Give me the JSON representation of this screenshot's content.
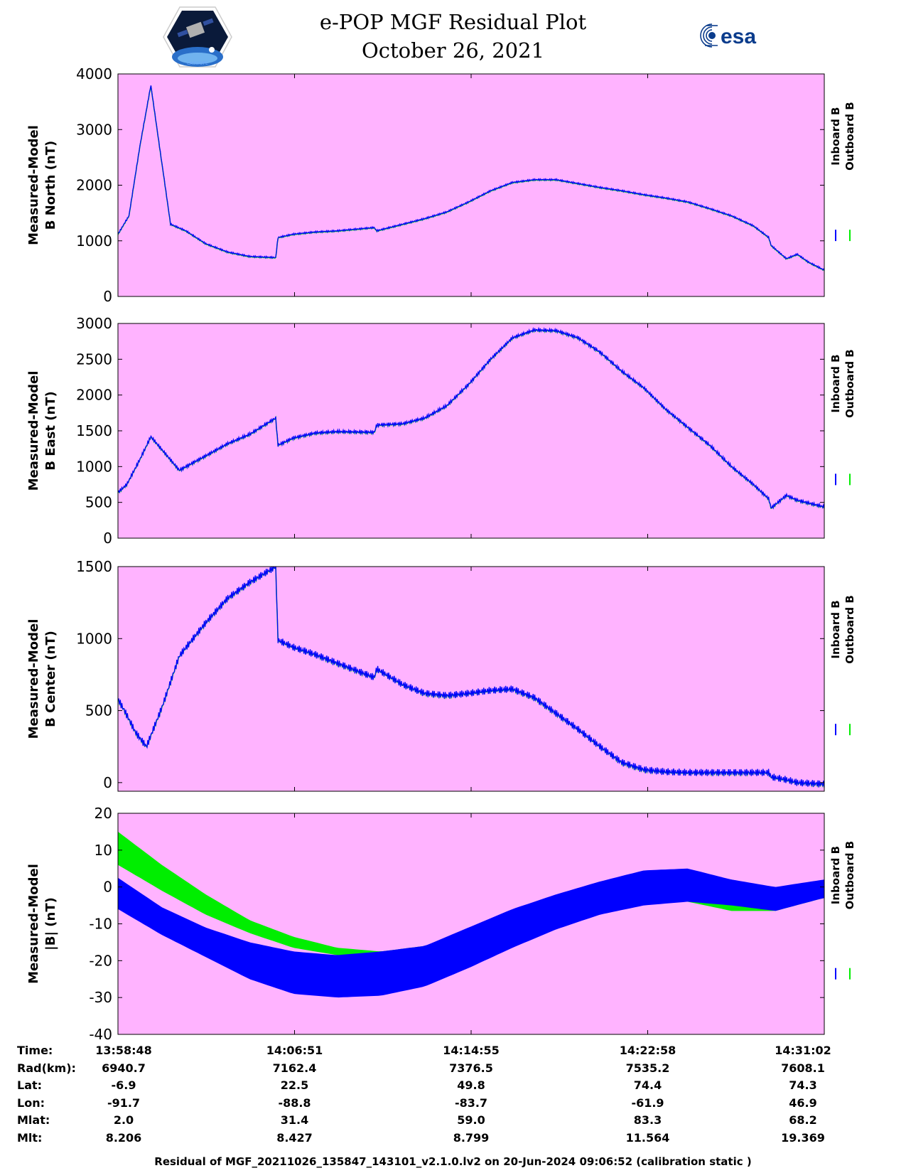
{
  "header": {
    "title_line1": "e-POP MGF Residual Plot",
    "title_line2": "October 26, 2021"
  },
  "logos": {
    "mission_logo": "cassiope-satellite-logo",
    "agency_logo_text": "esa"
  },
  "legend": {
    "inboard_label": "Inboard B",
    "outboard_label": "Outboard B",
    "inboard_color": "#0000ff",
    "outboard_color": "#00ee00"
  },
  "colors": {
    "panel_background": "#ffb3ff",
    "inboard": "#0000ff",
    "outboard": "#00ee00"
  },
  "chart_data": [
    {
      "type": "line",
      "ylabel_line1": "Measured-Model",
      "ylabel_line2": "B North (nT)",
      "ylim": [
        0,
        4000
      ],
      "yticks": [
        0,
        1000,
        2000,
        3000,
        4000
      ],
      "x_range_minutes": [
        0,
        32.23
      ],
      "series": [
        {
          "name": "Inboard B",
          "color": "#0000ff",
          "x": [
            0,
            0.5,
            1,
            1.5,
            2.4,
            3.1,
            4,
            5,
            6,
            7.2,
            7.3,
            8,
            9,
            10,
            11.7,
            11.8,
            13,
            14,
            15,
            16,
            17,
            18,
            19,
            20,
            21,
            22,
            23,
            24,
            25,
            26,
            27,
            28,
            29,
            29.7,
            29.8,
            30.5,
            31,
            31.5,
            32.2
          ],
          "y": [
            1120,
            1450,
            2700,
            3800,
            1300,
            1180,
            950,
            800,
            720,
            700,
            1060,
            1120,
            1160,
            1180,
            1240,
            1180,
            1300,
            1400,
            1520,
            1700,
            1900,
            2050,
            2100,
            2100,
            2030,
            1960,
            1900,
            1830,
            1770,
            1700,
            1580,
            1450,
            1270,
            1060,
            920,
            680,
            760,
            620,
            480
          ]
        }
      ],
      "amplitude": 15
    },
    {
      "type": "line",
      "ylabel_line1": "Measured-Model",
      "ylabel_line2": "B East (nT)",
      "ylim": [
        0,
        3000
      ],
      "yticks": [
        0,
        500,
        1000,
        1500,
        2000,
        2500,
        3000
      ],
      "x_range_minutes": [
        0,
        32.23
      ],
      "series": [
        {
          "name": "Inboard B",
          "color": "#0000ff",
          "x": [
            0,
            0.4,
            1,
            1.5,
            2.8,
            4,
            5,
            6,
            7.2,
            7.3,
            8,
            9,
            10,
            11.7,
            11.8,
            13,
            14,
            15,
            16,
            17,
            18,
            19,
            20,
            21,
            22,
            23,
            24,
            25,
            26,
            27,
            28,
            29,
            29.7,
            29.8,
            30.5,
            31,
            32.2
          ],
          "y": [
            640,
            750,
            1100,
            1420,
            950,
            1150,
            1320,
            1450,
            1680,
            1300,
            1400,
            1470,
            1490,
            1480,
            1580,
            1600,
            1680,
            1850,
            2150,
            2500,
            2800,
            2910,
            2900,
            2800,
            2600,
            2330,
            2100,
            1800,
            1550,
            1300,
            1000,
            750,
            550,
            420,
            600,
            530,
            440
          ]
        }
      ],
      "amplitude": 25
    },
    {
      "type": "line",
      "ylabel_line1": "Measured-Model",
      "ylabel_line2": "B Center (nT)",
      "ylim": [
        -60,
        1500
      ],
      "yticks": [
        0,
        500,
        1000,
        1500
      ],
      "x_range_minutes": [
        0,
        32.23
      ],
      "series": [
        {
          "name": "Inboard B",
          "color": "#0000ff",
          "x": [
            0,
            0.3,
            0.8,
            1.3,
            2,
            2.8,
            4,
            5,
            6,
            7.2,
            7.3,
            8,
            9,
            10,
            11.7,
            11.8,
            13,
            14,
            15,
            16,
            17,
            18,
            19,
            20,
            21,
            22,
            23,
            24,
            25,
            26,
            27,
            28,
            29,
            29.7,
            29.8,
            30.5,
            31,
            32.2
          ],
          "y": [
            580,
            500,
            350,
            250,
            520,
            880,
            1110,
            1280,
            1390,
            1500,
            990,
            940,
            890,
            830,
            730,
            790,
            680,
            620,
            605,
            620,
            640,
            650,
            590,
            480,
            370,
            250,
            140,
            90,
            75,
            70,
            70,
            70,
            70,
            70,
            40,
            20,
            0,
            -10
          ]
        }
      ],
      "amplitude": 25
    },
    {
      "type": "area",
      "ylabel_line1": "Measured-Model",
      "ylabel_line2": "|B| (nT)",
      "ylim": [
        -40,
        20
      ],
      "yticks": [
        -40,
        -30,
        -20,
        -10,
        0,
        10,
        20
      ],
      "x_range_minutes": [
        0,
        32.23
      ],
      "series": [
        {
          "name": "Outboard B",
          "color": "#00ee00",
          "x": [
            0,
            2,
            4,
            6,
            8,
            10,
            12,
            14,
            16,
            18,
            20,
            22,
            24,
            26,
            28,
            30,
            32.2
          ],
          "y_low": [
            6,
            -1,
            -7.5,
            -12.5,
            -16.5,
            -18.5,
            -19,
            -18,
            -13.5,
            -10,
            -7,
            -4.5,
            -3,
            -4,
            -6.5,
            -6.5,
            -3
          ],
          "y_high": [
            15,
            6,
            -2,
            -9,
            -13.5,
            -16.5,
            -17.5,
            -16,
            -12,
            -8,
            -4,
            0,
            3,
            4,
            2,
            -0.5,
            1.5
          ]
        },
        {
          "name": "Inboard B",
          "color": "#0000ff",
          "x": [
            0,
            2,
            4,
            6,
            8,
            10,
            12,
            14,
            16,
            18,
            20,
            22,
            24,
            26,
            28,
            30,
            32.2
          ],
          "y_low": [
            -6,
            -13,
            -19,
            -25,
            -29,
            -30,
            -29.5,
            -27,
            -22,
            -16.5,
            -11.5,
            -7.5,
            -5,
            -4,
            -5,
            -6.5,
            -3
          ],
          "y_high": [
            2.5,
            -5.5,
            -11,
            -15,
            -17.5,
            -18.5,
            -17.5,
            -16,
            -11,
            -6,
            -2,
            1.5,
            4.5,
            5,
            2,
            0,
            2
          ]
        }
      ]
    }
  ],
  "x_axis": {
    "tick_times": [
      "13:58:48",
      "14:06:51",
      "14:14:55",
      "14:22:58",
      "14:31:02"
    ]
  },
  "ephemeris": {
    "rows": [
      {
        "label": "Time:",
        "values": [
          "13:58:48",
          "14:06:51",
          "14:14:55",
          "14:22:58",
          "14:31:02"
        ]
      },
      {
        "label": "Rad(km):",
        "values": [
          "6940.7",
          "7162.4",
          "7376.5",
          "7535.2",
          "7608.1"
        ]
      },
      {
        "label": "Lat:",
        "values": [
          "-6.9",
          "22.5",
          "49.8",
          "74.4",
          "74.3"
        ]
      },
      {
        "label": "Lon:",
        "values": [
          "-91.7",
          "-88.8",
          "-83.7",
          "-61.9",
          "46.9"
        ]
      },
      {
        "label": "Mlat:",
        "values": [
          "2.0",
          "31.4",
          "59.0",
          "83.3",
          "68.2"
        ]
      },
      {
        "label": "Mlt:",
        "values": [
          "8.206",
          "8.427",
          "8.799",
          "11.564",
          "19.369"
        ]
      }
    ]
  },
  "footer": {
    "text": "Residual of MGF_20211026_135847_143101_v2.1.0.lv2 on 20-Jun-2024 09:06:52 (calibration static )"
  }
}
